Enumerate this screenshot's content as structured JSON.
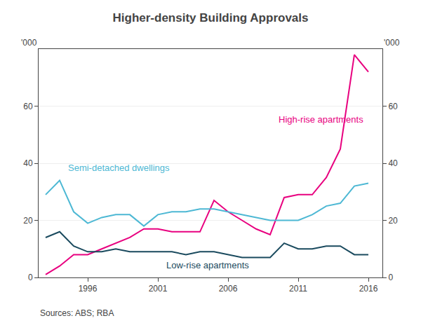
{
  "chart_data": {
    "type": "line",
    "title": "Higher-density Building Approvals",
    "ylabel": "'000",
    "y2label": "'000",
    "source": "Sources: ABS; RBA",
    "x": [
      1993,
      1994,
      1995,
      1996,
      1997,
      1998,
      1999,
      2000,
      2001,
      2002,
      2003,
      2004,
      2005,
      2006,
      2007,
      2008,
      2009,
      2010,
      2011,
      2012,
      2013,
      2014,
      2015,
      2016
    ],
    "series": [
      {
        "name": "High-rise apartments",
        "color": "#e8007f",
        "values": [
          1,
          4,
          8,
          8,
          10,
          12,
          14,
          17,
          17,
          16,
          16,
          16,
          27,
          23,
          20,
          17,
          15,
          28,
          29,
          29,
          35,
          45,
          78,
          72
        ]
      },
      {
        "name": "Semi-detached dwellings",
        "color": "#4db8d4",
        "values": [
          29,
          34,
          23,
          19,
          21,
          22,
          22,
          18,
          22,
          23,
          23,
          24,
          24,
          23,
          22,
          21,
          20,
          20,
          20,
          22,
          25,
          26,
          32,
          33
        ]
      },
      {
        "name": "Low-rise apartments",
        "color": "#1a4a5e",
        "values": [
          14,
          16,
          11,
          9,
          9,
          10,
          9,
          9,
          9,
          9,
          8,
          9,
          9,
          8,
          7,
          7,
          7,
          12,
          10,
          10,
          11,
          11,
          8,
          8
        ]
      }
    ],
    "xlim": [
      1992.5,
      2017
    ],
    "xticks": [
      1996,
      2001,
      2006,
      2011,
      2016
    ],
    "ylim": [
      0,
      80
    ],
    "yticks": [
      0,
      20,
      40,
      60
    ],
    "y2lim": [
      0,
      80
    ],
    "y2ticks": [
      0,
      20,
      40,
      60
    ],
    "grid": "y",
    "annotations": [
      {
        "text": "High-rise apartments",
        "x": 2009.5,
        "y": 53,
        "color": "#e8007f"
      },
      {
        "text": "Semi-detached dwellings",
        "x": 1994.5,
        "y": 36,
        "color": "#4db8d4"
      },
      {
        "text": "Low-rise apartments",
        "x": 2001.5,
        "y": 2,
        "color": "#1a4a5e"
      }
    ]
  }
}
